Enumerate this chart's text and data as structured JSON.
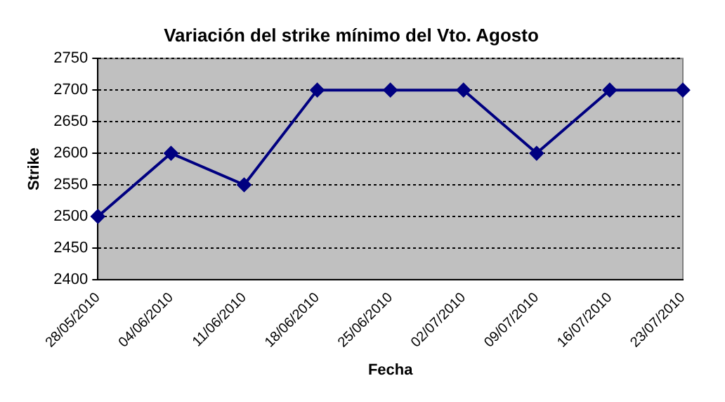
{
  "chart_data": {
    "type": "line",
    "title": "Variación del strike mínimo del Vto. Agosto",
    "xlabel": "Fecha",
    "ylabel": "Strike",
    "categories": [
      "28/05/2010",
      "04/06/2010",
      "11/06/2010",
      "18/06/2010",
      "25/06/2010",
      "02/07/2010",
      "09/07/2010",
      "16/07/2010",
      "23/07/2010"
    ],
    "series": [
      {
        "color": "#000080",
        "values": [
          2500,
          2600,
          2550,
          2700,
          2700,
          2700,
          2600,
          2700,
          2700
        ]
      }
    ],
    "ylim": [
      2400,
      2750
    ],
    "yticks": [
      2400,
      2450,
      2500,
      2550,
      2600,
      2650,
      2700,
      2750
    ],
    "grid": "y",
    "legend": false,
    "marker": "diamond",
    "line_style": "solid"
  }
}
